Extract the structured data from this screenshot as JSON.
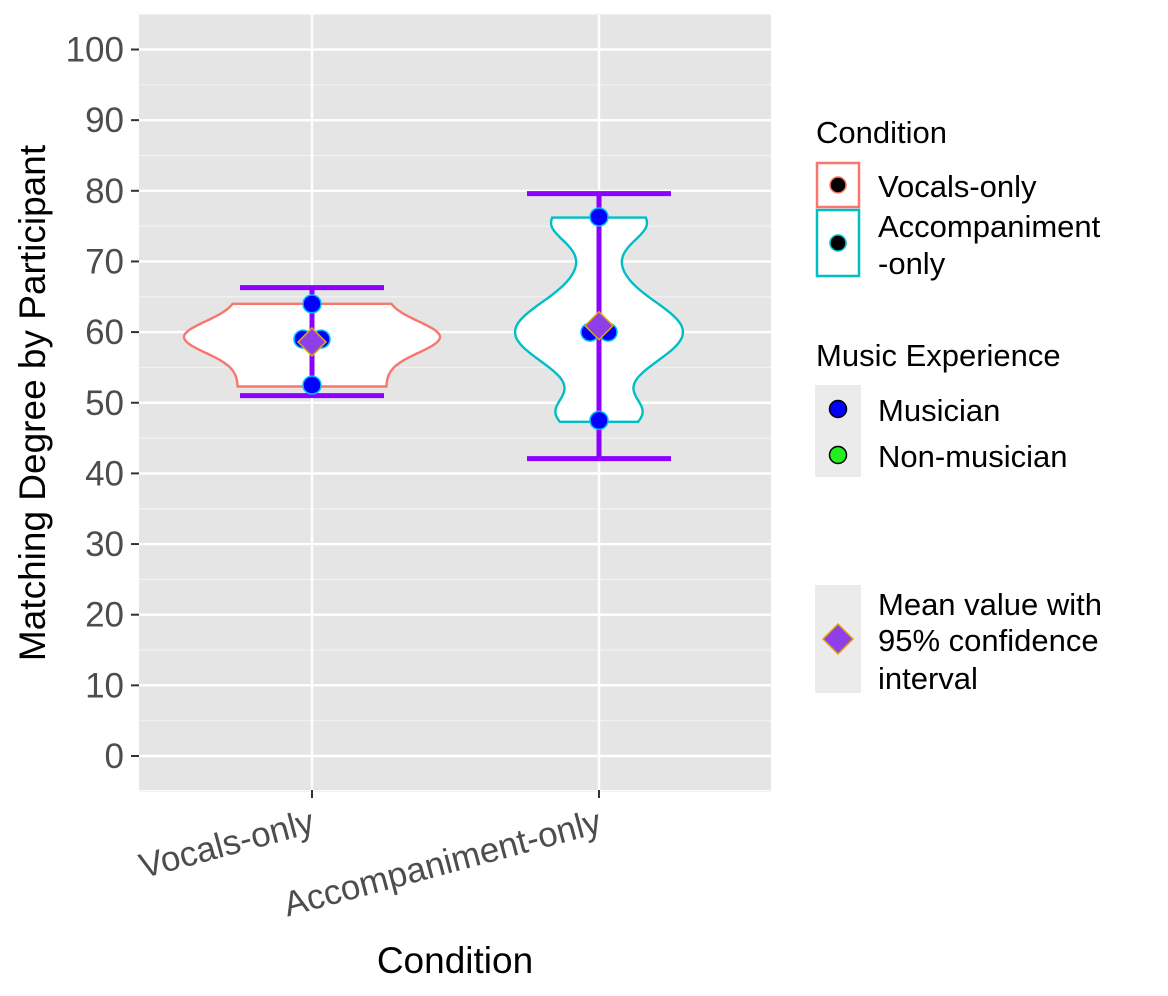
{
  "chart_data": {
    "type": "violin",
    "xlabel": "Condition",
    "ylabel": "Matching Degree by Participant",
    "ylim": [
      -5,
      105
    ],
    "yticks": [
      0,
      10,
      20,
      30,
      40,
      50,
      60,
      70,
      80,
      90,
      100
    ],
    "grid": true,
    "categories": [
      "Vocals-only",
      "Accompaniment-only"
    ],
    "points": [
      {
        "condition": "Vocals-only",
        "values": [
          64,
          59,
          59,
          52.5
        ],
        "group": "Musician"
      },
      {
        "condition": "Accompaniment-only",
        "values": [
          76.3,
          60,
          60,
          47.5
        ],
        "group": "Musician"
      }
    ],
    "means": [
      {
        "condition": "Vocals-only",
        "mean": 58.6,
        "ci_low": 51,
        "ci_high": 66.3
      },
      {
        "condition": "Accompaniment-only",
        "mean": 60.9,
        "ci_low": 42.1,
        "ci_high": 79.6
      }
    ],
    "colors": {
      "vocals": "#F8766D",
      "accompaniment": "#00BFC4",
      "musician": "#0000FF",
      "non_musician": "#22EE22",
      "mean_marker": "#8E3FE8",
      "errorbar": "#8B00FF",
      "panel": "#E5E5E5"
    },
    "legend": {
      "position": "right",
      "condition_title": "Condition",
      "condition_items": [
        "Vocals-only",
        "Accompaniment\n-only"
      ],
      "music_title": "Music Experience",
      "music_items": [
        "Musician",
        "Non-musician"
      ],
      "mean_label": [
        "Mean value with",
        "95% confidence",
        "interval"
      ]
    }
  }
}
